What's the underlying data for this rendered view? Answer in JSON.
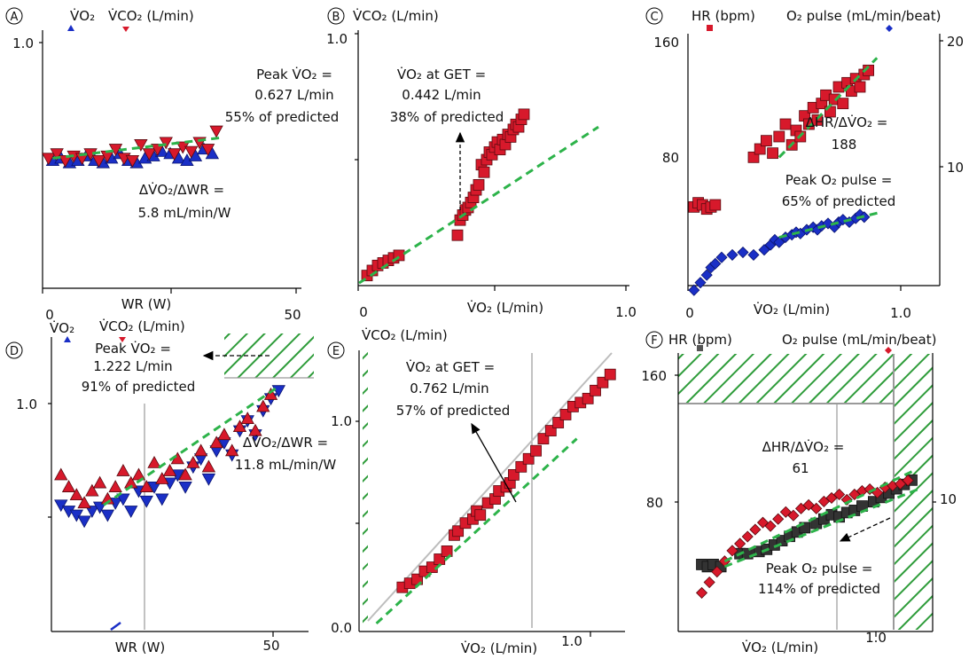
{
  "colors": {
    "red": "#d7192b",
    "blue": "#1a2fc6",
    "dark": "#333333",
    "green": "#2db34a",
    "hatch": "#2e9c3a"
  },
  "chart_data": [
    {
      "panel": "A",
      "type": "scatter",
      "header": {
        "left": "V̇O₂",
        "right": "V̇CO₂ (L/min)"
      },
      "xlabel": "WR (W)",
      "ylabel": "",
      "xticks": [
        "0",
        "50"
      ],
      "yticks": [
        "1.0"
      ],
      "xlim": [
        0,
        60
      ],
      "ylim": [
        0,
        1.1
      ],
      "annotations": [
        {
          "lines": [
            "Peak V̇O₂ =",
            "0.627 L/min",
            "55% of predicted"
          ]
        },
        {
          "lines": [
            "ΔV̇O₂/ΔWR =",
            "5.8 mL/min/W"
          ]
        }
      ],
      "series": [
        {
          "marker": "triangle-up",
          "color": "blue",
          "x": [
            2,
            4,
            6,
            8,
            10,
            12,
            14,
            16,
            18,
            20,
            22,
            24,
            26,
            28,
            30,
            32,
            34,
            36,
            38,
            40
          ],
          "y": [
            0.55,
            0.56,
            0.54,
            0.55,
            0.57,
            0.55,
            0.54,
            0.56,
            0.58,
            0.55,
            0.54,
            0.56,
            0.57,
            0.59,
            0.58,
            0.56,
            0.55,
            0.57,
            0.6,
            0.58
          ]
        },
        {
          "marker": "triangle-down",
          "color": "red",
          "x": [
            1,
            3,
            5,
            7,
            9,
            11,
            13,
            15,
            17,
            19,
            21,
            23,
            25,
            27,
            29,
            31,
            33,
            35,
            37,
            39,
            41
          ],
          "y": [
            0.56,
            0.58,
            0.55,
            0.57,
            0.56,
            0.58,
            0.55,
            0.57,
            0.6,
            0.56,
            0.55,
            0.62,
            0.58,
            0.6,
            0.63,
            0.58,
            0.61,
            0.59,
            0.63,
            0.6,
            0.68
          ]
        }
      ],
      "fit": {
        "x": [
          2,
          42
        ],
        "y": [
          0.56,
          0.65
        ]
      }
    },
    {
      "panel": "B",
      "type": "scatter",
      "header": {
        "left": "V̇CO₂ (L/min)",
        "right": ""
      },
      "xlabel": "V̇O₂ (L/min)",
      "ylabel": "",
      "xticks": [
        "0",
        "1.0"
      ],
      "yticks": [
        "1.0"
      ],
      "xlim": [
        0,
        1.0
      ],
      "ylim": [
        0,
        1.0
      ],
      "annotations": [
        {
          "lines": [
            "V̇O₂ at GET =",
            "0.442 L/min",
            "38% of predicted"
          ]
        }
      ],
      "series": [
        {
          "marker": "square",
          "color": "red",
          "x": [
            0.03,
            0.05,
            0.07,
            0.09,
            0.11,
            0.13,
            0.15,
            0.37,
            0.38,
            0.39,
            0.4,
            0.41,
            0.42,
            0.43,
            0.44,
            0.45,
            0.46,
            0.47,
            0.48,
            0.49,
            0.5,
            0.51,
            0.52,
            0.53,
            0.54,
            0.55,
            0.56,
            0.57,
            0.58,
            0.59,
            0.6,
            0.61,
            0.62
          ],
          "y": [
            0.04,
            0.06,
            0.08,
            0.09,
            0.1,
            0.11,
            0.12,
            0.2,
            0.26,
            0.28,
            0.3,
            0.31,
            0.33,
            0.35,
            0.38,
            0.4,
            0.48,
            0.45,
            0.5,
            0.53,
            0.52,
            0.55,
            0.57,
            0.54,
            0.58,
            0.56,
            0.6,
            0.59,
            0.62,
            0.64,
            0.63,
            0.66,
            0.68
          ]
        }
      ],
      "fit": {
        "x": [
          0,
          0.9
        ],
        "y": [
          0.01,
          0.63
        ]
      }
    },
    {
      "panel": "C",
      "type": "scatter",
      "header": {
        "left": "HR (bpm)",
        "right": "O₂ pulse (mL/min/beat)"
      },
      "xlabel": "V̇O₂ (L/min)",
      "ylabel": "",
      "xticks": [
        "0",
        "1.0"
      ],
      "yticks": [
        "160",
        "80"
      ],
      "y2ticks": [
        "20",
        "10"
      ],
      "xlim": [
        0,
        1.0
      ],
      "ylim": [
        40,
        160
      ],
      "y2lim": [
        0,
        20
      ],
      "annotations": [
        {
          "lines": [
            "ΔHR/ΔV̇O₂ =",
            "188"
          ]
        },
        {
          "lines": [
            "Peak O₂ pulse =",
            "65% of predicted"
          ]
        }
      ],
      "series": [
        {
          "name": "HR",
          "axis": "left",
          "marker": "square",
          "color": "red",
          "x": [
            0.02,
            0.04,
            0.06,
            0.08,
            0.1,
            0.12,
            0.3,
            0.33,
            0.36,
            0.39,
            0.42,
            0.45,
            0.48,
            0.5,
            0.52,
            0.54,
            0.56,
            0.58,
            0.6,
            0.62,
            0.64,
            0.66,
            0.68,
            0.7,
            0.72,
            0.74,
            0.76,
            0.78,
            0.8,
            0.82,
            0.84
          ],
          "y": [
            78,
            80,
            79,
            77,
            78,
            79,
            102,
            106,
            110,
            104,
            112,
            118,
            108,
            115,
            112,
            122,
            118,
            126,
            120,
            128,
            132,
            124,
            130,
            136,
            128,
            138,
            134,
            140,
            136,
            142,
            144
          ]
        },
        {
          "name": "O₂ pulse",
          "axis": "right",
          "marker": "diamond",
          "color": "blue",
          "x": [
            0.02,
            0.05,
            0.08,
            0.1,
            0.12,
            0.15,
            0.2,
            0.25,
            0.3,
            0.35,
            0.38,
            0.4,
            0.42,
            0.45,
            0.48,
            0.5,
            0.52,
            0.55,
            0.58,
            0.6,
            0.62,
            0.65,
            0.68,
            0.7,
            0.72,
            0.75,
            0.78,
            0.8,
            0.82
          ],
          "y": [
            0.2,
            0.8,
            1.4,
            2.0,
            2.3,
            2.8,
            3.0,
            3.2,
            3.0,
            3.4,
            3.8,
            4.2,
            4.0,
            4.4,
            4.6,
            4.8,
            4.7,
            5.0,
            5.2,
            5.0,
            5.3,
            5.5,
            5.2,
            5.6,
            5.8,
            5.6,
            5.9,
            6.2,
            6.0
          ]
        }
      ],
      "fit": [
        {
          "axis": "left",
          "x": [
            0.42,
            0.88
          ],
          "y": [
            102,
            150
          ]
        },
        {
          "axis": "right",
          "x": [
            0.42,
            0.9
          ],
          "y": [
            4.4,
            6.4
          ]
        }
      ]
    },
    {
      "panel": "D",
      "type": "scatter",
      "header": {
        "left": "V̇O₂",
        "right": "V̇CO₂ (L/min)"
      },
      "xlabel": "WR (W)",
      "ylabel": "",
      "xticks": [
        "50"
      ],
      "yticks": [
        "1.0"
      ],
      "xlim": [
        -5,
        60
      ],
      "ylim": [
        0,
        1.4
      ],
      "annotations": [
        {
          "lines": [
            "Peak V̇O₂ =",
            "1.222 L/min",
            "91% of predicted"
          ]
        },
        {
          "lines": [
            "ΔV̇O₂/ΔWR =",
            "11.8 mL/min/W"
          ]
        }
      ],
      "series": [
        {
          "marker": "triangle-down",
          "color": "blue",
          "x": [
            -3,
            -1,
            1,
            3,
            5,
            7,
            9,
            11,
            13,
            15,
            17,
            19,
            21,
            23,
            25,
            27,
            29,
            31,
            33,
            35,
            37,
            39,
            41,
            43,
            45,
            47,
            49,
            51,
            53
          ],
          "y": [
            0.63,
            0.6,
            0.58,
            0.55,
            0.6,
            0.62,
            0.58,
            0.64,
            0.66,
            0.6,
            0.7,
            0.65,
            0.72,
            0.66,
            0.74,
            0.78,
            0.72,
            0.82,
            0.86,
            0.76,
            0.9,
            0.94,
            0.88,
            1.0,
            1.05,
            0.98,
            1.1,
            1.16,
            1.2
          ]
        },
        {
          "marker": "triangle-up",
          "color": "red",
          "x": [
            -3,
            -1,
            1,
            3,
            5,
            7,
            9,
            11,
            13,
            15,
            17,
            19,
            21,
            23,
            25,
            27,
            29,
            31,
            33,
            35,
            37,
            39,
            41,
            43,
            45,
            47,
            49,
            51
          ],
          "y": [
            0.78,
            0.72,
            0.68,
            0.64,
            0.7,
            0.74,
            0.66,
            0.72,
            0.8,
            0.74,
            0.78,
            0.72,
            0.84,
            0.76,
            0.8,
            0.86,
            0.78,
            0.84,
            0.9,
            0.82,
            0.94,
            0.98,
            0.9,
            1.02,
            1.06,
            1.0,
            1.12,
            1.18
          ]
        }
      ],
      "fit": {
        "x": [
          8,
          53
        ],
        "y": [
          0.63,
          1.22
        ]
      }
    },
    {
      "panel": "E",
      "type": "scatter",
      "header": {
        "left": "V̇CO₂ (L/min)",
        "right": ""
      },
      "xlabel": "V̇O₂ (L/min)",
      "ylabel": "",
      "xticks": [
        "1.0"
      ],
      "yticks": [
        "1.0",
        "0.0"
      ],
      "xlim": [
        0,
        1.4
      ],
      "ylim": [
        0,
        1.4
      ],
      "annotations": [
        {
          "lines": [
            "V̇O₂ at GET =",
            "0.762 L/min",
            "57% of predicted"
          ]
        }
      ],
      "series": [
        {
          "marker": "square",
          "color": "red",
          "x": [
            0.2,
            0.24,
            0.28,
            0.32,
            0.36,
            0.4,
            0.44,
            0.48,
            0.5,
            0.54,
            0.58,
            0.6,
            0.62,
            0.66,
            0.7,
            0.72,
            0.76,
            0.78,
            0.8,
            0.84,
            0.88,
            0.92,
            0.96,
            1.0,
            1.04,
            1.08,
            1.12,
            1.16,
            1.2,
            1.24,
            1.28,
            1.32
          ],
          "y": [
            0.22,
            0.24,
            0.26,
            0.3,
            0.32,
            0.36,
            0.4,
            0.48,
            0.5,
            0.54,
            0.56,
            0.6,
            0.58,
            0.64,
            0.66,
            0.7,
            0.72,
            0.74,
            0.78,
            0.82,
            0.86,
            0.9,
            0.96,
            1.0,
            1.04,
            1.08,
            1.12,
            1.14,
            1.16,
            1.2,
            1.24,
            1.28
          ]
        }
      ],
      "fit": {
        "x": [
          0.06,
          1.14
        ],
        "y": [
          0.04,
          0.96
        ]
      }
    },
    {
      "panel": "F",
      "type": "scatter",
      "header": {
        "left": "HR (bpm)",
        "right": "O₂ pulse (mL/min/beat)"
      },
      "xlabel": "V̇O₂ (L/min)",
      "ylabel": "",
      "xticks": [
        "1.0"
      ],
      "yticks": [
        "160",
        "80"
      ],
      "y2ticks": [
        "10"
      ],
      "xlim": [
        0,
        1.3
      ],
      "ylim": [
        40,
        170
      ],
      "y2lim": [
        0,
        16
      ],
      "annotations": [
        {
          "lines": [
            "ΔHR/ΔV̇O₂ =",
            "61"
          ]
        },
        {
          "lines": [
            "Peak O₂ pulse =",
            "114% of predicted"
          ]
        }
      ],
      "series": [
        {
          "name": "HR",
          "axis": "left",
          "marker": "square",
          "color": "dark",
          "x": [
            0.1,
            0.13,
            0.16,
            0.2,
            0.3,
            0.34,
            0.4,
            0.44,
            0.48,
            0.52,
            0.56,
            0.6,
            0.64,
            0.7,
            0.74,
            0.78,
            0.82,
            0.86,
            0.9,
            0.94,
            1.0,
            1.04,
            1.08,
            1.12,
            1.16,
            1.2
          ],
          "y": [
            71,
            70,
            71,
            70,
            76,
            76,
            77,
            78,
            80,
            82,
            84,
            86,
            88,
            90,
            92,
            94,
            93,
            95,
            96,
            98,
            100,
            102,
            104,
            106,
            108,
            110
          ]
        },
        {
          "name": "O₂ pulse",
          "axis": "right",
          "marker": "diamond",
          "color": "red",
          "x": [
            0.1,
            0.14,
            0.18,
            0.22,
            0.26,
            0.3,
            0.34,
            0.38,
            0.42,
            0.46,
            0.5,
            0.54,
            0.58,
            0.62,
            0.66,
            0.7,
            0.74,
            0.78,
            0.82,
            0.86,
            0.9,
            0.94,
            0.98,
            1.02,
            1.06,
            1.1,
            1.14,
            1.18
          ],
          "y": [
            2.2,
            2.8,
            3.4,
            4.0,
            4.6,
            5.0,
            5.4,
            5.8,
            6.2,
            6.0,
            6.4,
            6.8,
            6.6,
            7.0,
            7.2,
            7.0,
            7.4,
            7.6,
            7.8,
            7.5,
            7.8,
            8.0,
            8.1,
            7.9,
            8.2,
            8.3,
            8.4,
            8.6
          ]
        }
      ],
      "fit": [
        {
          "axis": "left",
          "x": [
            0.22,
            1.24
          ],
          "y": [
            70,
            106
          ]
        },
        {
          "axis": "right",
          "x": [
            0.22,
            1.22
          ],
          "y": [
            4.0,
            9.2
          ]
        }
      ]
    }
  ]
}
